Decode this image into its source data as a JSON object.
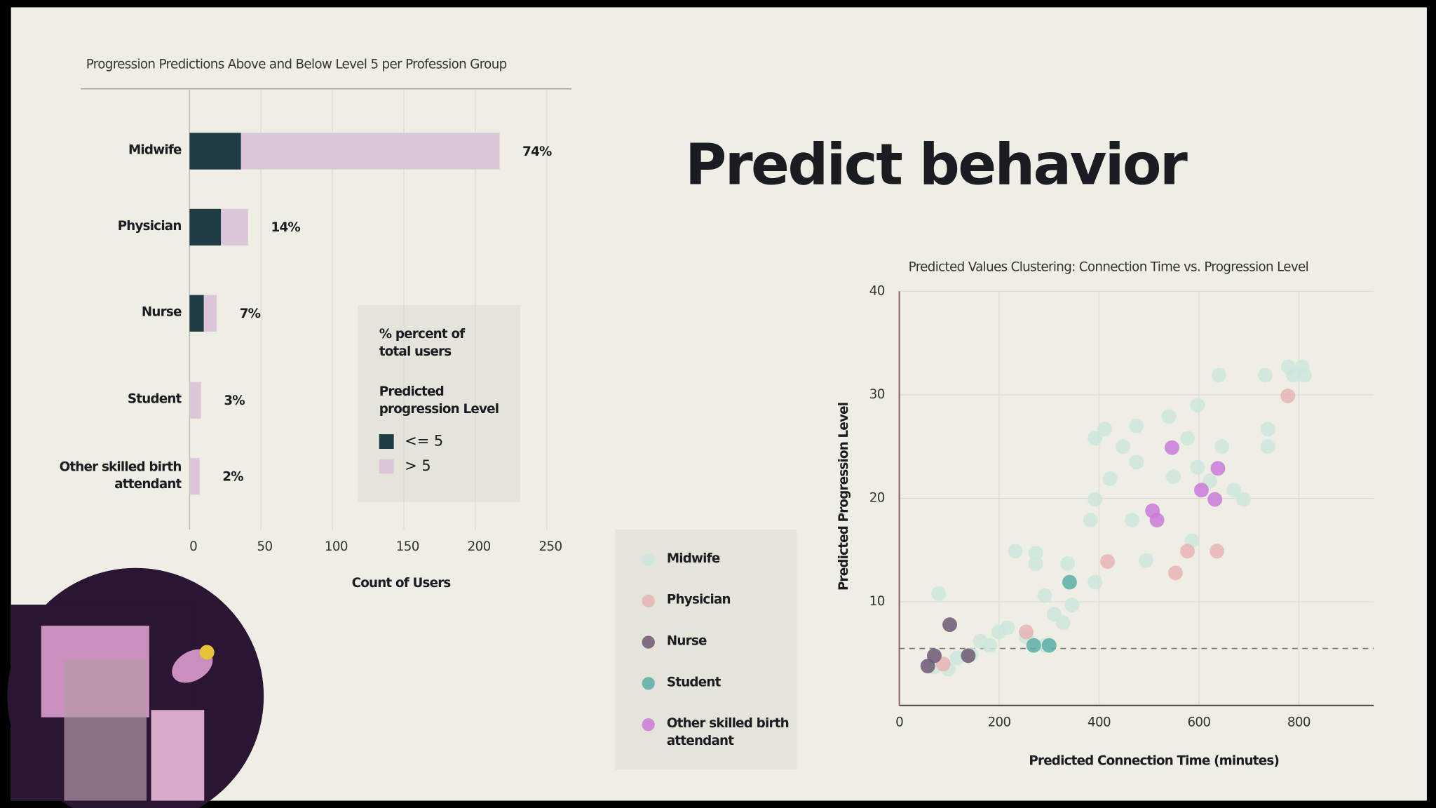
{
  "title": "Predict behavior",
  "chart_data": [
    {
      "type": "bar",
      "orientation": "horizontal",
      "stacked": true,
      "title": "Progression Predictions Above and Below Level 5 per Profession Group",
      "categories": [
        "Midwife",
        "Physician",
        "Nurse",
        "Student",
        "Other skilled birth attendant"
      ],
      "series": [
        {
          "name": "<= 5",
          "color": "#1f3b44",
          "values": [
            36,
            22,
            10,
            0,
            0
          ]
        },
        {
          "name": "> 5",
          "color": "#dcc6da",
          "values": [
            181,
            19,
            9,
            8,
            7
          ]
        }
      ],
      "share_labels": [
        "74%",
        "14%",
        "7%",
        "3%",
        "2%"
      ],
      "xlabel": "Count of Users",
      "xlim": [
        0,
        250
      ],
      "xticks": [
        0,
        50,
        100,
        150,
        200,
        250
      ],
      "grid": true,
      "legend_title": "% percent of total users",
      "legend_subtitle": "Predicted progression Level"
    },
    {
      "type": "scatter",
      "title": "Predicted Values Clustering: Connection Time vs. Progression Level",
      "xlabel": "Predicted Connection Time (minutes)",
      "ylabel": "Predicted Progression Level",
      "xlim": [
        0,
        950
      ],
      "xticks": [
        0,
        200,
        400,
        600,
        800
      ],
      "ylim": [
        0,
        40
      ],
      "yticks": [
        10,
        20,
        30,
        40
      ],
      "grid": true,
      "hline": 5.5,
      "series": [
        {
          "name": "Midwife",
          "color": "#cde6da",
          "x": [
            79,
            98,
            144,
            162,
            199,
            217,
            232,
            273,
            273,
            291,
            310,
            328,
            337,
            346,
            383,
            392,
            392,
            392,
            411,
            422,
            448,
            466,
            475,
            475,
            494,
            540,
            549,
            577,
            586,
            597,
            597,
            622,
            640,
            646,
            670,
            689,
            733,
            738,
            738,
            779,
            807,
            811,
            789,
            70,
            116,
            181,
            254,
            291
          ],
          "values": [
            10.8,
            3.5,
            4.9,
            6.2,
            7.1,
            7.5,
            14.9,
            14.7,
            13.7,
            10.6,
            8.8,
            8.0,
            13.7,
            9.7,
            17.9,
            19.9,
            11.9,
            25.8,
            26.7,
            21.9,
            25.0,
            17.9,
            23.5,
            27.0,
            14.0,
            27.9,
            22.1,
            25.8,
            15.9,
            29.0,
            23.0,
            21.7,
            31.9,
            25.0,
            20.8,
            19.9,
            31.9,
            26.7,
            25.0,
            32.7,
            32.7,
            31.9,
            31.9,
            3.7,
            4.6,
            5.8,
            6.6,
            5.8
          ]
        },
        {
          "name": "Physician",
          "color": "#e6b4b4",
          "x": [
            88,
            254,
            417,
            553,
            577,
            636,
            778
          ],
          "values": [
            4.0,
            7.1,
            13.9,
            12.8,
            14.9,
            14.9,
            29.9
          ]
        },
        {
          "name": "Nurse",
          "color": "#6e5874",
          "x": [
            57,
            101,
            70,
            138
          ],
          "values": [
            3.8,
            7.8,
            4.8,
            4.8
          ]
        },
        {
          "name": "Student",
          "color": "#5aafa6",
          "x": [
            300,
            341,
            269
          ],
          "values": [
            5.8,
            11.9,
            5.8
          ]
        },
        {
          "name": "Other skilled birth attendant",
          "color": "#c97ad8",
          "x": [
            546,
            507,
            516,
            605,
            632,
            638
          ],
          "values": [
            24.9,
            18.8,
            17.9,
            20.8,
            19.9,
            22.9
          ]
        }
      ]
    }
  ]
}
